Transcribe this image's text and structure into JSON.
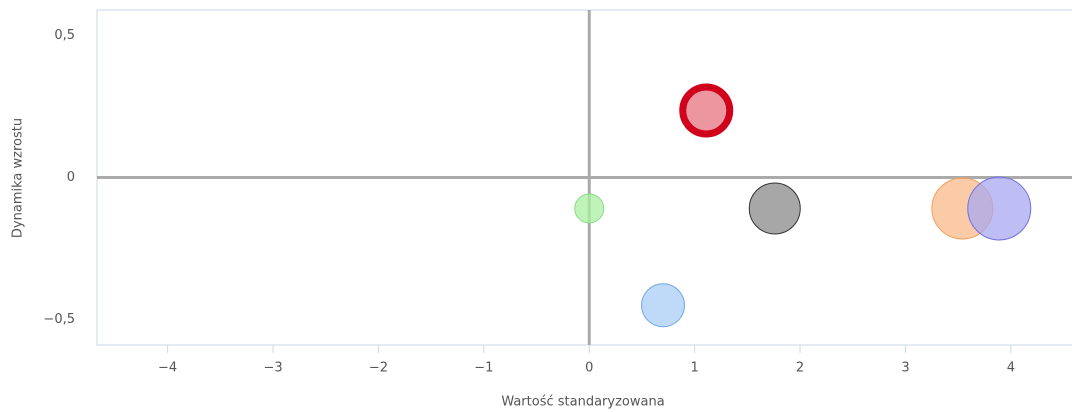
{
  "chart_data": {
    "type": "bubble",
    "x_label": "Wartość standaryzowana",
    "y_label": "Dynamika wzrostu",
    "x": [
      1.11,
      0,
      0.7,
      1.76,
      3.54,
      3.89
    ],
    "values": [
      0.236,
      -0.109,
      -0.45,
      -0.109,
      -0.109,
      -0.109
    ],
    "sizes": [
      27,
      15,
      22,
      26,
      31,
      32
    ],
    "colors": [
      "#e57380",
      "#a8f0a0",
      "#a9cdf5",
      "#8a8a8a",
      "#f9b98a",
      "#a8a8f0"
    ],
    "border_colors": [
      "#d0021b",
      "#8ed88a",
      "#6fa6e0",
      "#333333",
      "#f0a060",
      "#7070e0"
    ],
    "border_widths": [
      7,
      1,
      1,
      1,
      1,
      1
    ],
    "xlim": [
      -4.67,
      4.58
    ],
    "ylim": [
      -0.59,
      0.59
    ],
    "xticks": [
      {
        "value": -4,
        "label": "−4"
      },
      {
        "value": -3,
        "label": "−3"
      },
      {
        "value": -2,
        "label": "−2"
      },
      {
        "value": -1,
        "label": "−1"
      },
      0,
      1,
      2,
      3,
      4
    ],
    "yticks": [
      {
        "value": -0.5,
        "label": "−0,5"
      },
      0,
      {
        "value": 0.5,
        "label": "0,5"
      }
    ]
  }
}
